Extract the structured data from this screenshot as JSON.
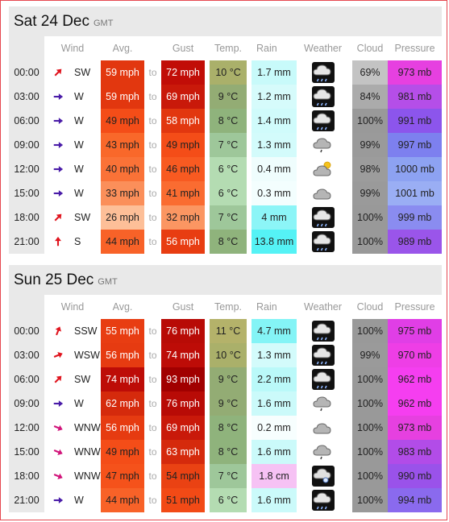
{
  "columns": {
    "wind": "Wind",
    "avg": "Avg.",
    "gust": "Gust",
    "temp": "Temp.",
    "rain": "Rain",
    "weather": "Weather",
    "cloud": "Cloud",
    "pressure": "Pressure",
    "to": "to"
  },
  "days": [
    {
      "title": "Sat 24 Dec",
      "tz": "GMT",
      "rows": [
        {
          "time": "00:00",
          "dir": "SW",
          "rot": 225,
          "avg": "59 mph",
          "avgc": "#e2370f",
          "gust": "72 mph",
          "gustc": "#c10d07",
          "temp": "10 °C",
          "tempc": "#aab06a",
          "rain": "1.7 mm",
          "rainc": "#c8fafa",
          "wx": "heavy-rain-cloud-icon",
          "cloud": "69%",
          "cloudc": "#c3c3c3",
          "pres": "973 mb",
          "presc": "#e640e0"
        },
        {
          "time": "03:00",
          "dir": "W",
          "rot": 270,
          "avg": "59 mph",
          "avgc": "#e2370f",
          "gust": "69 mph",
          "gustc": "#c9190a",
          "temp": "9 °C",
          "tempc": "#93ac74",
          "rain": "1.2 mm",
          "rainc": "#d6fbfb",
          "wx": "heavy-rain-cloud-icon",
          "cloud": "84%",
          "cloudc": "#ababab",
          "pres": "981 mb",
          "presc": "#b54ee8"
        },
        {
          "time": "06:00",
          "dir": "W",
          "rot": 270,
          "avg": "49 mph",
          "avgc": "#f44d18",
          "gust": "58 mph",
          "gustc": "#e2370f",
          "temp": "8 °C",
          "tempc": "#8fb37c",
          "rain": "1.4 mm",
          "rainc": "#d0fbfb",
          "wx": "heavy-rain-cloud-icon",
          "cloud": "100%",
          "cloudc": "#999999",
          "pres": "991 mb",
          "presc": "#8c55ec"
        },
        {
          "time": "09:00",
          "dir": "W",
          "rot": 270,
          "avg": "43 mph",
          "avgc": "#f9682a",
          "gust": "49 mph",
          "gustc": "#f44d18",
          "temp": "7 °C",
          "tempc": "#9ec79a",
          "rain": "1.3 mm",
          "rainc": "#d3fbfb",
          "wx": "light-rain-cloud-icon",
          "cloud": "99%",
          "cloudc": "#9a9a9a",
          "pres": "997 mb",
          "presc": "#7d80ef"
        },
        {
          "time": "12:00",
          "dir": "W",
          "rot": 270,
          "avg": "40 mph",
          "avgc": "#fa7237",
          "gust": "46 mph",
          "gustc": "#f85a21",
          "temp": "6 °C",
          "tempc": "#b4dcb2",
          "rain": "0.4 mm",
          "rainc": "#effdfd",
          "wx": "sun-cloud-icon",
          "cloud": "98%",
          "cloudc": "#9c9c9c",
          "pres": "1000 mb",
          "presc": "#8da2f2"
        },
        {
          "time": "15:00",
          "dir": "W",
          "rot": 270,
          "avg": "33 mph",
          "avgc": "#fb8f5a",
          "gust": "41 mph",
          "gustc": "#fa6c31",
          "temp": "6 °C",
          "tempc": "#b4dcb2",
          "rain": "0.3 mm",
          "rainc": "#f3fefe",
          "wx": "cloud-icon",
          "cloud": "99%",
          "cloudc": "#9a9a9a",
          "pres": "1001 mb",
          "presc": "#9aaef4"
        },
        {
          "time": "18:00",
          "dir": "SW",
          "rot": 225,
          "avg": "26 mph",
          "avgc": "#fdbf98",
          "gust": "32 mph",
          "gustc": "#fb9662",
          "temp": "7 °C",
          "tempc": "#9ec79a",
          "rain": "4 mm",
          "rainc": "#8cf5f7",
          "wx": "heavy-rain-cloud-icon",
          "cloud": "100%",
          "cloudc": "#999999",
          "pres": "999 mb",
          "presc": "#8a8cf0"
        },
        {
          "time": "21:00",
          "dir": "S",
          "rot": 180,
          "avg": "44 mph",
          "avgc": "#f86228",
          "gust": "56 mph",
          "gustc": "#e83d12",
          "temp": "8 °C",
          "tempc": "#8fb37c",
          "rain": "13.8 mm",
          "rainc": "#55f2f5",
          "wx": "heavy-rain-cloud-icon",
          "cloud": "100%",
          "cloudc": "#999999",
          "pres": "989 mb",
          "presc": "#9a55ea"
        }
      ]
    },
    {
      "title": "Sun 25 Dec",
      "tz": "GMT",
      "rows": [
        {
          "time": "00:00",
          "dir": "SSW",
          "rot": 202,
          "avg": "55 mph",
          "avgc": "#e83d12",
          "gust": "76 mph",
          "gustc": "#b80b06",
          "temp": "11 °C",
          "tempc": "#b4b26a",
          "rain": "4.7 mm",
          "rainc": "#84f4f6",
          "wx": "heavy-rain-cloud-icon",
          "cloud": "100%",
          "cloudc": "#999999",
          "pres": "975 mb",
          "presc": "#e03ee6"
        },
        {
          "time": "03:00",
          "dir": "WSW",
          "rot": 248,
          "avg": "56 mph",
          "avgc": "#e63b11",
          "gust": "74 mph",
          "gustc": "#bd0c07",
          "temp": "10 °C",
          "tempc": "#aab06a",
          "rain": "1.3 mm",
          "rainc": "#d3fbfb",
          "wx": "heavy-rain-cloud-icon",
          "cloud": "99%",
          "cloudc": "#9a9a9a",
          "pres": "970 mb",
          "presc": "#ee3ee6"
        },
        {
          "time": "06:00",
          "dir": "SW",
          "rot": 225,
          "avg": "74 mph",
          "avgc": "#bd0c07",
          "gust": "93 mph",
          "gustc": "#a10000",
          "temp": "9 °C",
          "tempc": "#93ac74",
          "rain": "2.2 mm",
          "rainc": "#baf9f9",
          "wx": "heavy-rain-cloud-icon",
          "cloud": "100%",
          "cloudc": "#999999",
          "pres": "962 mb",
          "presc": "#f53ef0"
        },
        {
          "time": "09:00",
          "dir": "W",
          "rot": 270,
          "avg": "62 mph",
          "avgc": "#d52a0c",
          "gust": "76 mph",
          "gustc": "#b80b06",
          "temp": "9 °C",
          "tempc": "#93ac74",
          "rain": "1.6 mm",
          "rainc": "#cbfafa",
          "wx": "light-rain-cloud-icon",
          "cloud": "100%",
          "cloudc": "#999999",
          "pres": "962 mb",
          "presc": "#f53ef0"
        },
        {
          "time": "12:00",
          "dir": "WNW",
          "rot": 292,
          "avg": "56 mph",
          "avgc": "#e63b11",
          "gust": "69 mph",
          "gustc": "#c9190a",
          "temp": "8 °C",
          "tempc": "#8fb37c",
          "rain": "0.2 mm",
          "rainc": "#f7fefe",
          "wx": "cloud-icon",
          "cloud": "100%",
          "cloudc": "#999999",
          "pres": "973 mb",
          "presc": "#e640e0"
        },
        {
          "time": "15:00",
          "dir": "WNW",
          "rot": 292,
          "avg": "49 mph",
          "avgc": "#f44d18",
          "gust": "63 mph",
          "gustc": "#d52a0c",
          "temp": "8 °C",
          "tempc": "#8fb37c",
          "rain": "1.6 mm",
          "rainc": "#cbfafa",
          "wx": "light-rain-cloud-icon",
          "cloud": "100%",
          "cloudc": "#999999",
          "pres": "983 mb",
          "presc": "#b24ce8"
        },
        {
          "time": "18:00",
          "dir": "WNW",
          "rot": 292,
          "avg": "47 mph",
          "avgc": "#f5521b",
          "gust": "54 mph",
          "gustc": "#ea4213",
          "temp": "7 °C",
          "tempc": "#9ec79a",
          "rain": "1.8 cm",
          "rainc": "#f6c2f4",
          "wx": "snow-cloud-icon",
          "cloud": "100%",
          "cloudc": "#999999",
          "pres": "990 mb",
          "presc": "#9a52ea"
        },
        {
          "time": "21:00",
          "dir": "W",
          "rot": 270,
          "avg": "44 mph",
          "avgc": "#f86228",
          "gust": "51 mph",
          "gustc": "#f24a16",
          "temp": "6 °C",
          "tempc": "#b4dcb2",
          "rain": "1.6 mm",
          "rainc": "#cbfafa",
          "wx": "heavy-rain-cloud-icon",
          "cloud": "100%",
          "cloudc": "#999999",
          "pres": "994 mb",
          "presc": "#8a6aee"
        }
      ]
    }
  ]
}
